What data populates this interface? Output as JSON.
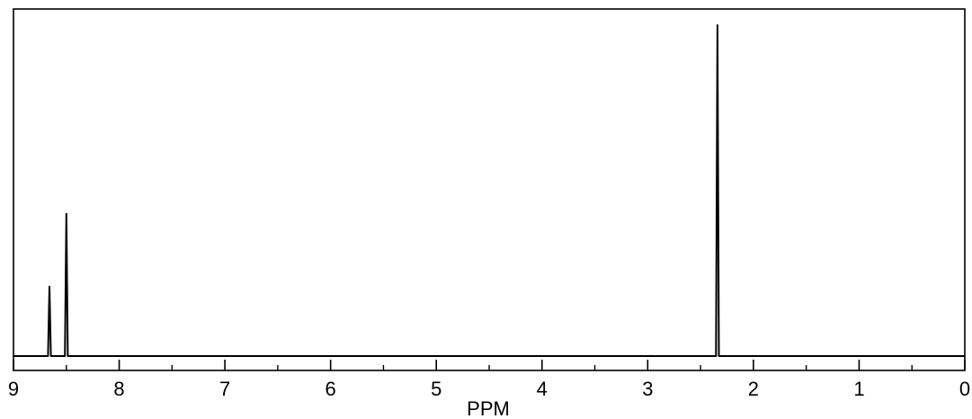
{
  "chart_data": {
    "type": "line",
    "title": "",
    "xlabel": "PPM",
    "ylabel": "",
    "x_reversed": true,
    "xlim": [
      9,
      0
    ],
    "x_major_ticks": [
      9,
      8,
      7,
      6,
      5,
      4,
      3,
      2,
      1,
      0
    ],
    "x_tick_labels": [
      "9",
      "8",
      "7",
      "6",
      "5",
      "4",
      "3",
      "2",
      "1",
      "0"
    ],
    "x_minor_ticks": [
      8.5,
      7.5,
      6.5,
      5.5,
      4.5,
      3.5,
      2.5,
      1.5,
      0.5
    ],
    "grid": false,
    "legend": "none",
    "ylim": [
      0,
      1.0
    ],
    "series": [
      {
        "peaks": [
          {
            "ppm": 8.66,
            "intensity": 0.21
          },
          {
            "ppm": 8.5,
            "intensity": 0.43
          },
          {
            "ppm": 2.34,
            "intensity": 1.0
          }
        ],
        "baseline": 0,
        "color": "#000000"
      }
    ],
    "colors": {
      "line": "#000000",
      "frame": "#000000",
      "background": "#ffffff"
    }
  }
}
